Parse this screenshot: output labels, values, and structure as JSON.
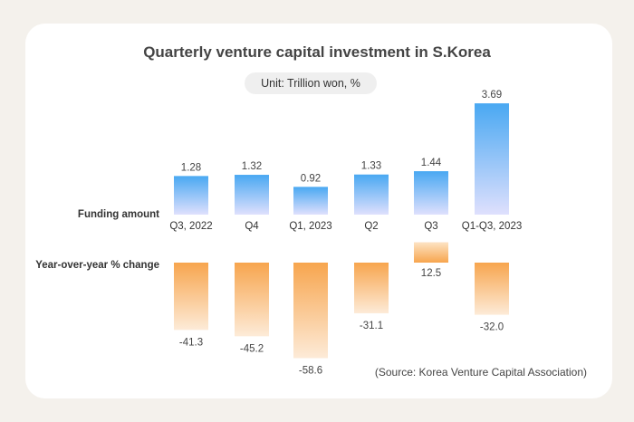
{
  "page": {
    "title": "Quarterly venture capital investment in S.Korea",
    "unit": "Unit: Trillion won, %",
    "source": "(Source: Korea Venture Capital Association)"
  },
  "chart_data": {
    "type": "bar",
    "title": "Quarterly venture capital investment in S.Korea",
    "categories": [
      "Q3, 2022",
      "Q4",
      "Q1, 2023",
      "Q2",
      "Q3",
      "Q1-Q3, 2023"
    ],
    "series": [
      {
        "name": "Funding amount",
        "values": [
          1.28,
          1.32,
          0.92,
          1.33,
          1.44,
          3.69
        ],
        "labels": [
          "1.28",
          "1.32",
          "0.92",
          "1.33",
          "1.44",
          "3.69"
        ],
        "color": "#49a8f2"
      },
      {
        "name": "Year-over-year % change",
        "values": [
          -41.3,
          -45.2,
          -58.6,
          -31.1,
          12.5,
          -32.0
        ],
        "labels": [
          "-41.3",
          "-45.2",
          "-58.6",
          "-31.1",
          "12.5",
          "-32.0"
        ],
        "color": "#f7a54e"
      }
    ],
    "legend": "left-side row labels"
  }
}
